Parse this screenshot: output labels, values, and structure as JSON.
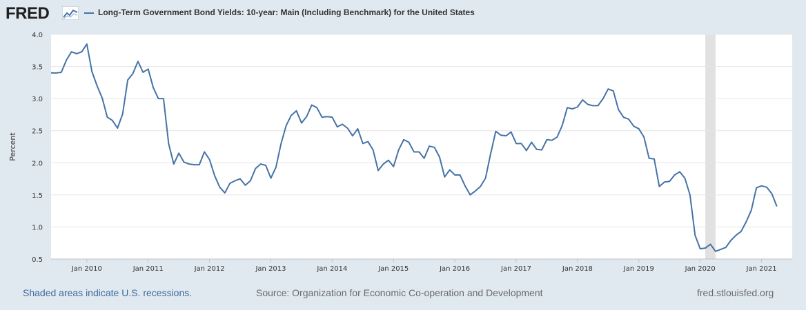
{
  "header": {
    "logo_text": "FRED",
    "legend_label": "Long-Term Government Bond Yields: 10-year: Main (Including Benchmark) for the United States"
  },
  "footer": {
    "recession_note": "Shaded areas indicate U.S. recessions.",
    "source": "Source: Organization for Economic Co-operation and Development",
    "site": "fred.stlouisfed.org"
  },
  "colors": {
    "series": "#4572a7",
    "recession": "#e1e1e1",
    "background": "#e1e9f0"
  },
  "icons": {
    "logo": "fred-graph-icon"
  },
  "chart_data": {
    "type": "line",
    "title": "",
    "xlabel": "",
    "ylabel": "Percent",
    "ylim": [
      0.5,
      4.0
    ],
    "yticks": [
      0.5,
      1.0,
      1.5,
      2.0,
      2.5,
      3.0,
      3.5,
      4.0
    ],
    "ytick_labels": [
      "0.5",
      "1.0",
      "1.5",
      "2.0",
      "2.5",
      "3.0",
      "3.5",
      "4.0"
    ],
    "xlim": [
      "2009-06",
      "2021-07"
    ],
    "xtick_labels": [
      {
        "date": "2010-01",
        "label": "Jan 2010"
      },
      {
        "date": "2011-01",
        "label": "Jan 2011"
      },
      {
        "date": "2012-01",
        "label": "Jan 2012"
      },
      {
        "date": "2013-01",
        "label": "Jan 2013"
      },
      {
        "date": "2014-01",
        "label": "Jan 2014"
      },
      {
        "date": "2015-01",
        "label": "Jan 2015"
      },
      {
        "date": "2016-01",
        "label": "Jan 2016"
      },
      {
        "date": "2017-01",
        "label": "Jan 2017"
      },
      {
        "date": "2018-01",
        "label": "Jan 2018"
      },
      {
        "date": "2019-01",
        "label": "Jan 2019"
      },
      {
        "date": "2020-01",
        "label": "Jan 2020"
      },
      {
        "date": "2021-01",
        "label": "Jan 2021"
      }
    ],
    "grid": "horizontal",
    "recessions": [
      {
        "start": "2020-02",
        "end": "2020-04"
      }
    ],
    "series": [
      {
        "start": "2009-06",
        "frequency": "monthly",
        "values": [
          3.4,
          3.4,
          3.41,
          3.6,
          3.73,
          3.7,
          3.73,
          3.85,
          3.42,
          3.2,
          3.01,
          2.71,
          2.66,
          2.54,
          2.76,
          3.29,
          3.39,
          3.58,
          3.41,
          3.46,
          3.17,
          3.0,
          3.0,
          2.3,
          1.98,
          2.15,
          2.01,
          1.98,
          1.97,
          1.97,
          2.17,
          2.05,
          1.8,
          1.62,
          1.53,
          1.68,
          1.72,
          1.75,
          1.65,
          1.72,
          1.91,
          1.98,
          1.96,
          1.76,
          1.93,
          2.3,
          2.58,
          2.74,
          2.81,
          2.62,
          2.72,
          2.9,
          2.86,
          2.71,
          2.72,
          2.71,
          2.56,
          2.6,
          2.54,
          2.42,
          2.53,
          2.3,
          2.33,
          2.2,
          1.88,
          1.98,
          2.04,
          1.94,
          2.2,
          2.36,
          2.32,
          2.17,
          2.17,
          2.07,
          2.26,
          2.24,
          2.09,
          1.78,
          1.89,
          1.81,
          1.81,
          1.64,
          1.5,
          1.56,
          1.63,
          1.76,
          2.14,
          2.49,
          2.43,
          2.42,
          2.48,
          2.3,
          2.3,
          2.19,
          2.32,
          2.21,
          2.2,
          2.36,
          2.35,
          2.4,
          2.58,
          2.86,
          2.84,
          2.87,
          2.98,
          2.91,
          2.89,
          2.89,
          3.0,
          3.15,
          3.12,
          2.83,
          2.71,
          2.68,
          2.57,
          2.53,
          2.4,
          2.07,
          2.06,
          1.63,
          1.7,
          1.71,
          1.81,
          1.86,
          1.76,
          1.5,
          0.87,
          0.66,
          0.67,
          0.73,
          0.62,
          0.65,
          0.68,
          0.79,
          0.87,
          0.93,
          1.08,
          1.26,
          1.61,
          1.64,
          1.62,
          1.52,
          1.32
        ]
      }
    ]
  }
}
